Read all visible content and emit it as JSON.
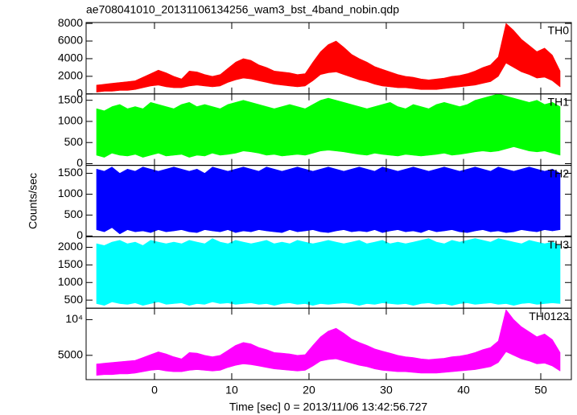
{
  "chart_data": {
    "type": "range",
    "title": "ae708041010_20131106134256_wam3_bst_4band_nobin.qdp",
    "xlabel": "Time [sec] 0 = 2013/11/06 13:42:56.727",
    "ylabel": "Counts/sec",
    "xlim": [
      -8.85,
      53.96
    ],
    "xticks": [
      0,
      10,
      20,
      30,
      40,
      50
    ],
    "x": [
      -7.5,
      -6.5,
      -5.5,
      -4.5,
      -3.5,
      -2.5,
      -1.5,
      -0.5,
      0.5,
      1.5,
      2.5,
      3.5,
      4.5,
      5.5,
      6.5,
      7.5,
      8.5,
      9.5,
      10.5,
      11.5,
      12.5,
      13.5,
      14.5,
      15.5,
      16.5,
      17.5,
      18.5,
      19.5,
      20.5,
      21.5,
      22.5,
      23.5,
      24.5,
      25.5,
      26.5,
      27.5,
      28.5,
      29.5,
      30.5,
      31.5,
      32.5,
      33.5,
      34.5,
      35.5,
      36.5,
      37.5,
      38.5,
      39.5,
      40.5,
      41.5,
      42.5,
      43.5,
      44.5,
      45.5,
      46.5,
      47.5,
      48.5,
      49.5,
      50.5,
      51.5,
      52.5
    ],
    "panels": [
      {
        "label": "TH0",
        "color": "#ff0000",
        "ylim": [
          0,
          8100
        ],
        "yticks": [
          0,
          2000,
          4000,
          6000,
          8000
        ],
        "low": [
          200,
          300,
          300,
          400,
          400,
          500,
          700,
          900,
          1000,
          800,
          700,
          700,
          900,
          1000,
          900,
          800,
          900,
          1300,
          1600,
          1800,
          1700,
          1500,
          1300,
          1100,
          1000,
          900,
          800,
          900,
          1500,
          2200,
          2400,
          2500,
          2200,
          1900,
          1600,
          1400,
          1100,
          900,
          800,
          700,
          700,
          600,
          500,
          500,
          500,
          600,
          700,
          800,
          900,
          1000,
          1200,
          1400,
          2000,
          3500,
          3000,
          2500,
          2200,
          1800,
          1900,
          1500,
          800
        ],
        "high": [
          1000,
          1100,
          1200,
          1300,
          1400,
          1500,
          1900,
          2300,
          2700,
          2400,
          2000,
          1700,
          2600,
          2500,
          2200,
          2000,
          2200,
          2900,
          3600,
          4000,
          3800,
          3300,
          3000,
          2600,
          2500,
          2400,
          2200,
          2300,
          3600,
          4800,
          5600,
          6000,
          5300,
          4500,
          4000,
          3600,
          3100,
          2800,
          2500,
          2200,
          2000,
          1900,
          1700,
          1600,
          1700,
          1800,
          2000,
          2100,
          2300,
          2600,
          3000,
          3300,
          4200,
          8000,
          7200,
          6200,
          5500,
          4800,
          5200,
          4400,
          2600
        ]
      },
      {
        "label": "TH1",
        "color": "#00ff00",
        "ylim": [
          -40,
          1650
        ],
        "yticks": [
          0,
          500,
          1000,
          1500
        ],
        "low": [
          200,
          150,
          250,
          200,
          180,
          220,
          150,
          200,
          250,
          180,
          200,
          220,
          150,
          200,
          180,
          250,
          200,
          220,
          250,
          300,
          280,
          250,
          200,
          220,
          180,
          200,
          220,
          200,
          250,
          300,
          320,
          300,
          280,
          250,
          220,
          200,
          250,
          220,
          200,
          180,
          220,
          200,
          180,
          200,
          220,
          250,
          200,
          220,
          250,
          280,
          300,
          280,
          300,
          350,
          400,
          350,
          300,
          280,
          300,
          250,
          200
        ],
        "high": [
          1300,
          1250,
          1350,
          1400,
          1300,
          1350,
          1300,
          1450,
          1400,
          1350,
          1300,
          1400,
          1450,
          1350,
          1400,
          1350,
          1300,
          1400,
          1450,
          1500,
          1450,
          1400,
          1350,
          1300,
          1350,
          1400,
          1350,
          1300,
          1400,
          1500,
          1550,
          1500,
          1450,
          1400,
          1350,
          1300,
          1350,
          1400,
          1450,
          1350,
          1300,
          1400,
          1350,
          1300,
          1400,
          1450,
          1400,
          1350,
          1400,
          1500,
          1550,
          1600,
          1650,
          1600,
          1550,
          1500,
          1450,
          1500,
          1400,
          1450,
          1350
        ]
      },
      {
        "label": "TH2",
        "color": "#0000ff",
        "ylim": [
          -20,
          1690
        ],
        "yticks": [
          0,
          500,
          1000,
          1500
        ],
        "low": [
          150,
          100,
          200,
          50,
          150,
          100,
          120,
          80,
          150,
          100,
          120,
          150,
          100,
          80,
          150,
          120,
          100,
          150,
          80,
          120,
          100,
          150,
          120,
          100,
          80,
          150,
          100,
          120,
          150,
          100,
          80,
          120,
          150,
          100,
          120,
          100,
          150,
          80,
          120,
          150,
          100,
          120,
          80,
          150,
          100,
          120,
          150,
          100,
          80,
          120,
          150,
          100,
          120,
          80,
          100,
          150,
          120,
          100,
          150,
          120,
          150
        ],
        "high": [
          1600,
          1550,
          1650,
          1500,
          1600,
          1550,
          1650,
          1600,
          1550,
          1600,
          1650,
          1600,
          1550,
          1600,
          1500,
          1650,
          1600,
          1550,
          1600,
          1650,
          1600,
          1550,
          1650,
          1600,
          1550,
          1600,
          1650,
          1600,
          1550,
          1600,
          1650,
          1600,
          1550,
          1600,
          1650,
          1600,
          1550,
          1650,
          1600,
          1550,
          1600,
          1650,
          1600,
          1550,
          1600,
          1650,
          1600,
          1550,
          1600,
          1650,
          1600,
          1550,
          1650,
          1600,
          1550,
          1600,
          1650,
          1600,
          1550,
          1600,
          1500
        ]
      },
      {
        "label": "TH3",
        "color": "#00ffff",
        "ylim": [
          270,
          2300
        ],
        "yticks": [
          500,
          1000,
          1500,
          2000
        ],
        "low": [
          400,
          350,
          450,
          400,
          380,
          420,
          350,
          400,
          450,
          380,
          400,
          420,
          350,
          400,
          380,
          450,
          400,
          420,
          380,
          400,
          420,
          380,
          400,
          350,
          400,
          420,
          380,
          400,
          350,
          400,
          380,
          400,
          420,
          400,
          350,
          400,
          380,
          420,
          400,
          380,
          400,
          350,
          400,
          420,
          380,
          400,
          350,
          400,
          420,
          380,
          400,
          420,
          380,
          400,
          350,
          400,
          420,
          380,
          400,
          420,
          400
        ],
        "high": [
          2100,
          2050,
          2150,
          2200,
          2100,
          2150,
          2050,
          2200,
          2150,
          2100,
          2150,
          2100,
          2200,
          2150,
          2100,
          2250,
          2150,
          2100,
          2200,
          2150,
          2100,
          2150,
          2200,
          2100,
          2150,
          2100,
          2200,
          2150,
          2100,
          2150,
          2200,
          2150,
          2100,
          2150,
          2200,
          2100,
          2150,
          2200,
          2100,
          2150,
          2100,
          2150,
          2200,
          2250,
          2150,
          2100,
          2200,
          2150,
          2200,
          2250,
          2200,
          2150,
          2250,
          2200,
          2150,
          2100,
          2200,
          2150,
          2100,
          2150,
          2050
        ]
      },
      {
        "label": "TH0123",
        "color": "#ff00ff",
        "ylim": [
          1600,
          11600
        ],
        "yticks": [
          5000,
          {
            "value": 10000,
            "label": "10⁴"
          }
        ],
        "low": [
          2200,
          2300,
          2300,
          2400,
          2400,
          2500,
          2700,
          2900,
          3000,
          2800,
          2700,
          2700,
          2900,
          3000,
          2900,
          2800,
          2900,
          3300,
          3600,
          3800,
          3700,
          3500,
          3300,
          3100,
          3000,
          2900,
          2800,
          2900,
          3500,
          4200,
          4400,
          4500,
          4200,
          3900,
          3600,
          3400,
          3100,
          2900,
          2800,
          2700,
          2700,
          2600,
          2500,
          2500,
          2500,
          2600,
          2700,
          2800,
          2900,
          3000,
          3200,
          3400,
          4000,
          5500,
          5000,
          4500,
          4200,
          3800,
          3900,
          3500,
          2800
        ],
        "high": [
          3800,
          3900,
          4000,
          4100,
          4200,
          4300,
          4700,
          5100,
          5500,
          5200,
          4800,
          4500,
          5400,
          5300,
          5000,
          4800,
          5000,
          5700,
          6400,
          6800,
          6600,
          6100,
          5800,
          5400,
          5300,
          5200,
          5000,
          5100,
          6400,
          7600,
          8400,
          8800,
          8100,
          7300,
          6800,
          6400,
          5900,
          5600,
          5300,
          5000,
          4800,
          4700,
          4500,
          4400,
          4500,
          4600,
          4800,
          4900,
          5100,
          5400,
          5800,
          6100,
          7000,
          11400,
          10000,
          9000,
          8300,
          7600,
          8000,
          7200,
          5400
        ]
      }
    ]
  }
}
